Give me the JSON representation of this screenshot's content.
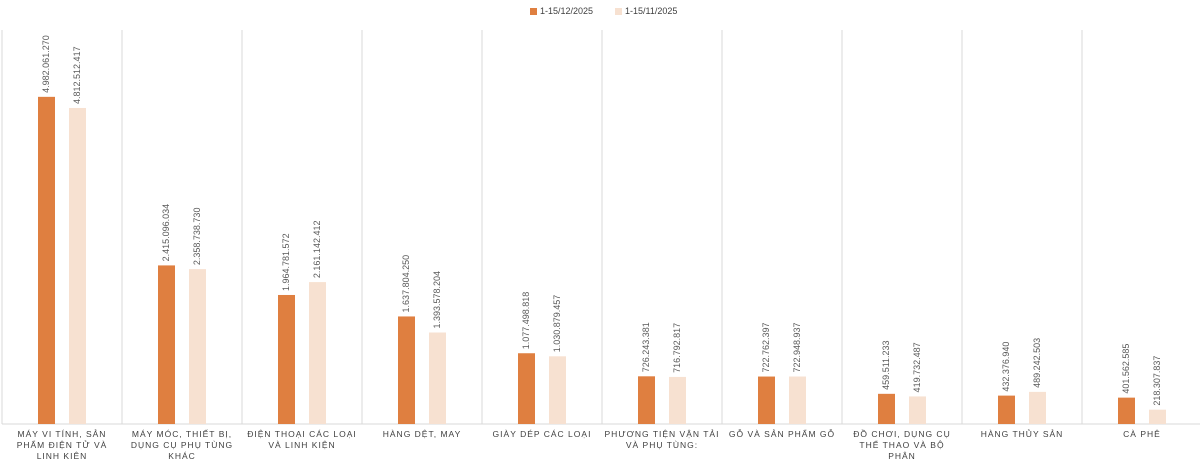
{
  "chart_data": {
    "type": "bar",
    "categories": [
      "MÁY VI TÍNH, SẢN PHẨM ĐIỆN TỬ VÀ LINH KIỆN",
      "MÁY MÓC, THIẾT BỊ, DỤNG CỤ PHỤ TÙNG KHÁC",
      "ĐIỆN THOẠI CÁC LOẠI VÀ LINH KIỆN",
      "HÀNG DỆT, MAY",
      "GIÀY DÉP CÁC LOẠI",
      "PHƯƠNG TIỆN VẬN TẢI VÀ PHỤ TÙNG:",
      "GỖ VÀ SẢN PHẨM GỖ",
      "ĐỒ CHƠI, DỤNG CỤ THỂ THAO VÀ BỘ PHẬN",
      "HÀNG THỦY SẢN",
      "CÀ PHÊ"
    ],
    "series": [
      {
        "name": "1-15/12/2025",
        "color": "#df7f40",
        "values": [
          4982061270,
          2415096034,
          1964781572,
          1637804250,
          1077498818,
          726243381,
          722762397,
          459511233,
          432376940,
          401562585
        ],
        "value_labels": [
          "4.982.061.270",
          "2.415.096.034",
          "1.964.781.572",
          "1.637.804.250",
          "1.077.498.818",
          "726.243.381",
          "722.762.397",
          "459.511.233",
          "432.376.940",
          "401.562.585"
        ]
      },
      {
        "name": "1-15/11/2025",
        "color": "#f7e1d1",
        "values": [
          4812512417,
          2358738730,
          2161142412,
          1393578204,
          1030879457,
          716792817,
          722948937,
          419732487,
          489242503,
          218307837
        ],
        "value_labels": [
          "4.812.512.417",
          "2.358.738.730",
          "2.161.142.412",
          "1.393.578.204",
          "1.030.879.457",
          "716.792.817",
          "722.948.937",
          "419.732.487",
          "489.242.503",
          "218.307.837"
        ]
      }
    ],
    "ylim": [
      0,
      6000000000
    ],
    "legend": "top"
  }
}
